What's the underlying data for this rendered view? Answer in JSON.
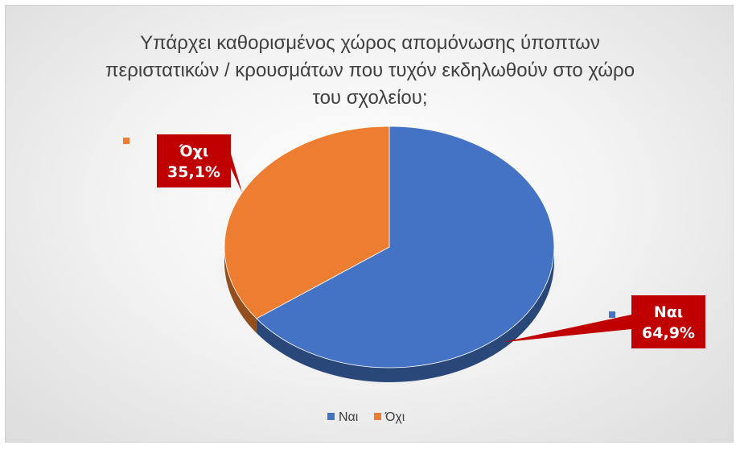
{
  "chart_data": {
    "type": "pie",
    "title_lines": [
      "Υπάρχει καθορισμένος χώρος απομόνωσης ύποπτων",
      "περιστατικών / κρουσμάτων που τυχόν εκδηλωθούν στο χώρο",
      "του σχολείου;"
    ],
    "slices": [
      {
        "label": "Ναι",
        "value": 64.9,
        "value_label": "64,9%",
        "color": "#4472C4"
      },
      {
        "label": "Όχι",
        "value": 35.1,
        "value_label": "35,1%",
        "color": "#ED7D31"
      }
    ],
    "callout_color": "#C00000",
    "legend_position": "bottom",
    "three_d": true
  }
}
